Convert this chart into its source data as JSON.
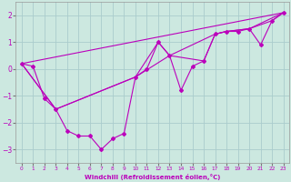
{
  "xlabel": "Windchill (Refroidissement éolien,°C)",
  "bg_color": "#cce8e0",
  "line_color": "#bb00bb",
  "grid_color": "#aacccc",
  "xlim": [
    -0.5,
    23.5
  ],
  "ylim": [
    -3.5,
    2.5
  ],
  "xticks": [
    0,
    1,
    2,
    3,
    4,
    5,
    6,
    7,
    8,
    9,
    10,
    11,
    12,
    13,
    14,
    15,
    16,
    17,
    18,
    19,
    20,
    21,
    22,
    23
  ],
  "yticks": [
    -3,
    -2,
    -1,
    0,
    1,
    2
  ],
  "series_main_x": [
    0,
    1,
    2,
    3,
    4,
    5,
    6,
    7,
    8,
    9,
    10,
    11,
    12,
    13,
    14,
    15,
    16,
    17,
    18,
    19,
    20,
    21,
    22,
    23
  ],
  "series_main_y": [
    0.2,
    0.1,
    -1.1,
    -1.5,
    -2.3,
    -2.5,
    -2.5,
    -3.0,
    -2.6,
    -2.4,
    -0.3,
    0.0,
    1.0,
    0.5,
    -0.8,
    0.1,
    0.3,
    1.3,
    1.4,
    1.4,
    1.5,
    0.9,
    1.8,
    2.1
  ],
  "series_line2_x": [
    0,
    3,
    10,
    12,
    13,
    16,
    17,
    18,
    20,
    22,
    23
  ],
  "series_line2_y": [
    0.2,
    -1.5,
    -0.3,
    1.0,
    0.5,
    0.3,
    1.3,
    1.4,
    1.5,
    1.8,
    2.1
  ],
  "series_line3_x": [
    0,
    3,
    10,
    13,
    17,
    18,
    20,
    23
  ],
  "series_line3_y": [
    0.2,
    -1.5,
    -0.3,
    0.5,
    1.3,
    1.4,
    1.5,
    2.1
  ],
  "trend_x": [
    0,
    23
  ],
  "trend_y": [
    0.2,
    2.1
  ]
}
